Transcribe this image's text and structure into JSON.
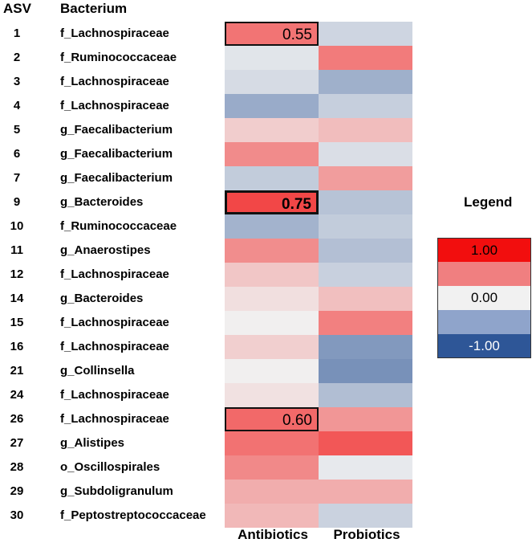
{
  "header": {
    "asv": "ASV",
    "bacterium": "Bacterium"
  },
  "legend": {
    "title": "Legend",
    "entries": [
      {
        "label": "1.00",
        "color": "#f20e0e"
      },
      {
        "label": "",
        "color": "#f07f80"
      },
      {
        "label": "0.00",
        "color": "#f1f1f1"
      },
      {
        "label": "",
        "color": "#8fa4cb"
      },
      {
        "label": "-1.00",
        "color": "#2e5697"
      }
    ]
  },
  "chart_data": {
    "type": "heatmap",
    "columns": [
      "Antibiotics",
      "Probiotics"
    ],
    "rows": [
      {
        "asv": "1",
        "bacterium": "f_Lachnospiraceae",
        "values": [
          0.55,
          -0.18
        ],
        "labels": [
          "0.55",
          ""
        ]
      },
      {
        "asv": "2",
        "bacterium": "f_Ruminococcaceae",
        "values": [
          -0.08,
          0.52
        ],
        "labels": [
          "",
          ""
        ]
      },
      {
        "asv": "3",
        "bacterium": "f_Lachnospiraceae",
        "values": [
          -0.14,
          -0.42
        ],
        "labels": [
          "",
          ""
        ]
      },
      {
        "asv": "4",
        "bacterium": "f_Lachnospiraceae",
        "values": [
          -0.45,
          -0.22
        ],
        "labels": [
          "",
          ""
        ]
      },
      {
        "asv": "5",
        "bacterium": "g_Faecalibacterium",
        "values": [
          0.16,
          0.23
        ],
        "labels": [
          "",
          ""
        ]
      },
      {
        "asv": "6",
        "bacterium": "g_Faecalibacterium",
        "values": [
          0.45,
          -0.12
        ],
        "labels": [
          "",
          ""
        ]
      },
      {
        "asv": "7",
        "bacterium": "g_Faecalibacterium",
        "values": [
          -0.24,
          0.37
        ],
        "labels": [
          "",
          ""
        ]
      },
      {
        "asv": "9",
        "bacterium": "g_Bacteroides",
        "values": [
          0.75,
          -0.3
        ],
        "labels": [
          "0.75",
          ""
        ]
      },
      {
        "asv": "10",
        "bacterium": "f_Ruminococcaceae",
        "values": [
          -0.4,
          -0.24
        ],
        "labels": [
          "",
          ""
        ]
      },
      {
        "asv": "11",
        "bacterium": "g_Anaerostipes",
        "values": [
          0.44,
          -0.32
        ],
        "labels": [
          "",
          ""
        ]
      },
      {
        "asv": "12",
        "bacterium": "f_Lachnospiraceae",
        "values": [
          0.19,
          -0.21
        ],
        "labels": [
          "",
          ""
        ]
      },
      {
        "asv": "14",
        "bacterium": "g_Bacteroides",
        "values": [
          0.08,
          0.22
        ],
        "labels": [
          "",
          ""
        ]
      },
      {
        "asv": "15",
        "bacterium": "f_Lachnospiraceae",
        "values": [
          0.01,
          0.5
        ],
        "labels": [
          "",
          ""
        ]
      },
      {
        "asv": "16",
        "bacterium": "f_Lachnospiraceae",
        "values": [
          0.15,
          -0.57
        ],
        "labels": [
          "",
          ""
        ]
      },
      {
        "asv": "21",
        "bacterium": "g_Collinsella",
        "values": [
          0.01,
          -0.62
        ],
        "labels": [
          "",
          ""
        ]
      },
      {
        "asv": "24",
        "bacterium": "f_Lachnospiraceae",
        "values": [
          0.07,
          -0.33
        ],
        "labels": [
          "",
          ""
        ]
      },
      {
        "asv": "26",
        "bacterium": "f_Lachnospiraceae",
        "values": [
          0.6,
          0.4
        ],
        "labels": [
          "0.60",
          ""
        ]
      },
      {
        "asv": "27",
        "bacterium": "g_Alistipes",
        "values": [
          0.56,
          0.68
        ],
        "labels": [
          "",
          ""
        ]
      },
      {
        "asv": "28",
        "bacterium": "o_Oscillospirales",
        "values": [
          0.46,
          -0.05
        ],
        "labels": [
          "",
          ""
        ]
      },
      {
        "asv": "29",
        "bacterium": "g_Subdoligranulum",
        "values": [
          0.3,
          0.3
        ],
        "labels": [
          "",
          ""
        ]
      },
      {
        "asv": "30",
        "bacterium": "f_Peptostreptococcaceae",
        "values": [
          0.25,
          -0.2
        ],
        "labels": [
          "",
          ""
        ]
      }
    ],
    "highlighted_cells": [
      {
        "row": 0,
        "column": 0
      },
      {
        "row": 7,
        "column": 0
      },
      {
        "row": 16,
        "column": 0
      }
    ],
    "color_scale": {
      "min": -1.0,
      "mid": 0.0,
      "max": 1.0,
      "min_color": "#2e5697",
      "mid_color": "#f1f1f1",
      "max_color": "#f20e0e"
    }
  }
}
